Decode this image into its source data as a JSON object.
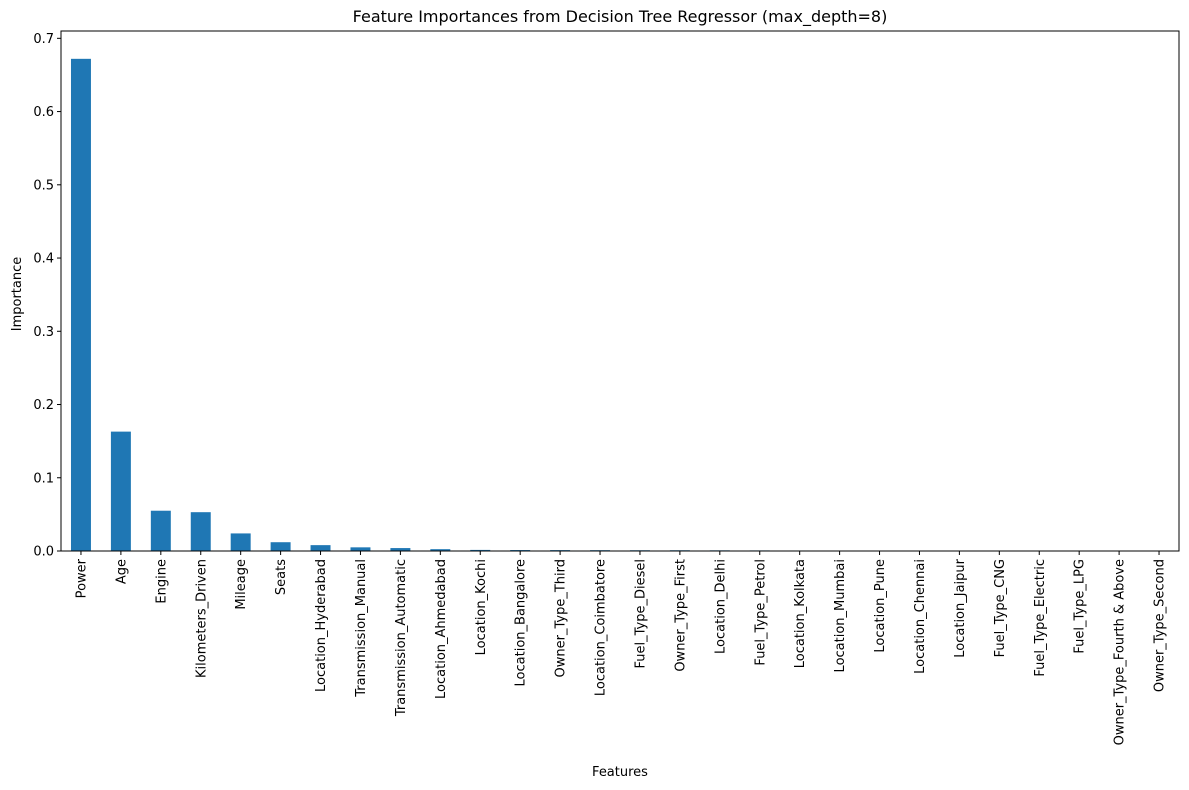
{
  "chart_data": {
    "type": "bar",
    "title": "Feature Importances from Decision Tree Regressor (max_depth=8)",
    "xlabel": "Features",
    "ylabel": "Importance",
    "ylim": [
      0,
      0.71
    ],
    "yticks": [
      "0.0",
      "0.1",
      "0.2",
      "0.3",
      "0.4",
      "0.5",
      "0.6",
      "0.7"
    ],
    "grid": false,
    "legend": "none",
    "bar_color": "#1f77b4",
    "categories": [
      "Power",
      "Age",
      "Engine",
      "Kilometers_Driven",
      "Mileage",
      "Seats",
      "Location_Hyderabad",
      "Transmission_Manual",
      "Transmission_Automatic",
      "Location_Ahmedabad",
      "Location_Kochi",
      "Location_Bangalore",
      "Owner_Type_Third",
      "Location_Coimbatore",
      "Fuel_Type_Diesel",
      "Owner_Type_First",
      "Location_Delhi",
      "Fuel_Type_Petrol",
      "Location_Kolkata",
      "Location_Mumbai",
      "Location_Pune",
      "Location_Chennai",
      "Location_Jaipur",
      "Fuel_Type_CNG",
      "Fuel_Type_Electric",
      "Fuel_Type_LPG",
      "Owner_Type_Fourth & Above",
      "Owner_Type_Second"
    ],
    "values": [
      0.672,
      0.163,
      0.055,
      0.053,
      0.024,
      0.012,
      0.008,
      0.005,
      0.004,
      0.0025,
      0.0015,
      0.0013,
      0.0012,
      0.0011,
      0.001,
      0.001,
      0.0009,
      0.0008,
      0.0007,
      0.0004,
      0.0003,
      0.0002,
      0.0002,
      0.0001,
      0.0001,
      0.0001,
      0.0,
      0.0
    ]
  }
}
